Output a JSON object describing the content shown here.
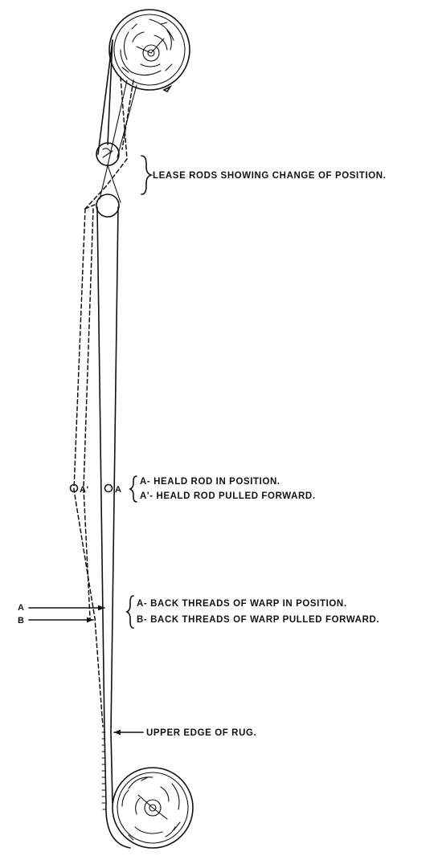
{
  "labels": {
    "lease_rods": "LEASE RODS SHOWING CHANGE OF POSITION.",
    "heald_a": "A- HEALD ROD IN POSITION.",
    "heald_a_prime": "A'- HEALD ROD PULLED FORWARD.",
    "back_a": "A- BACK THREADS OF WARP IN POSITION.",
    "back_b": "B- BACK THREADS OF WARP PULLED FORWARD.",
    "upper_edge": "UPPER EDGE OF RUG."
  },
  "markers": {
    "a_prime": "A'",
    "a": "A",
    "arrow_a": "A",
    "arrow_b": "B"
  }
}
